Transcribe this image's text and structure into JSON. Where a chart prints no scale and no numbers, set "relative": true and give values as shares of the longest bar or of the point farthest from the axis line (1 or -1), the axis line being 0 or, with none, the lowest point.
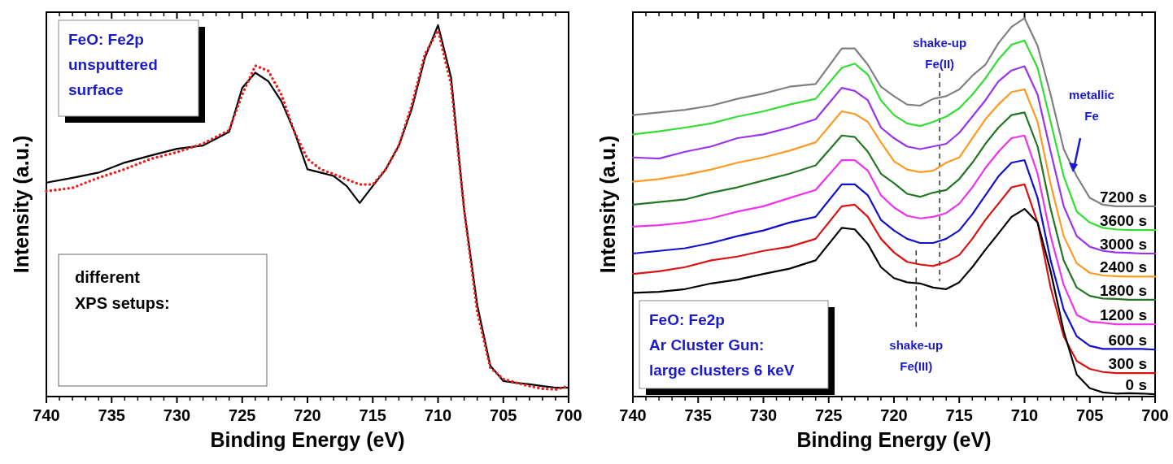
{
  "chart_data": [
    {
      "type": "line",
      "xlabel": "Binding Energy (eV)",
      "ylabel": "Intensity (a.u.)",
      "xlim": [
        740,
        700
      ],
      "xticks": [
        740,
        735,
        730,
        725,
        720,
        715,
        710,
        705,
        700
      ],
      "relative": true,
      "marker": "none",
      "annotations": [
        "FeO: Fe2p\nunsputtered\nsurface",
        "different\nXPS setups:"
      ],
      "x": [
        740,
        738,
        736,
        734,
        732,
        730,
        728,
        726,
        725,
        724,
        723,
        722,
        721,
        720,
        719,
        718,
        717,
        716,
        715,
        714,
        713,
        712,
        711,
        710,
        709,
        708,
        707,
        706,
        705,
        704,
        703,
        702,
        701,
        700
      ],
      "series": [
        {
          "color": "#000000",
          "line_style": "solid",
          "values": [
            0.576,
            0.589,
            0.603,
            0.63,
            0.649,
            0.667,
            0.676,
            0.713,
            0.831,
            0.872,
            0.849,
            0.795,
            0.713,
            0.612,
            0.603,
            0.594,
            0.567,
            0.521,
            0.567,
            0.612,
            0.676,
            0.776,
            0.913,
            1.0,
            0.859,
            0.503,
            0.247,
            0.083,
            0.042,
            0.037,
            0.033,
            0.028,
            0.024,
            0.024
          ]
        },
        {
          "color": "#e8201e",
          "line_style": "dotted",
          "values": [
            0.553,
            0.562,
            0.589,
            0.612,
            0.64,
            0.658,
            0.681,
            0.717,
            0.813,
            0.891,
            0.877,
            0.813,
            0.713,
            0.64,
            0.612,
            0.599,
            0.585,
            0.571,
            0.571,
            0.612,
            0.676,
            0.786,
            0.922,
            0.986,
            0.84,
            0.503,
            0.229,
            0.078,
            0.047,
            0.037,
            0.028,
            0.021,
            0.019,
            0.028
          ]
        }
      ]
    },
    {
      "type": "line",
      "xlabel": "Binding Energy (eV)",
      "ylabel": "Intensity (a.u.)",
      "xlim": [
        740,
        700
      ],
      "xticks": [
        740,
        735,
        730,
        725,
        720,
        715,
        710,
        705,
        700
      ],
      "relative": true,
      "marker": "none",
      "annotations": [
        "FeO: Fe2p\nAr Cluster Gun:\nlarge clusters 6 keV",
        "metallic\nFe"
      ],
      "ref_lines": [
        {
          "axis": "x",
          "value": 716.5,
          "label": "shake-up\nFe(II)",
          "color": "#333333",
          "line_style": "dashed"
        },
        {
          "axis": "x",
          "value": 718.3,
          "label": "shake-up\nFe(III)",
          "color": "#333333",
          "line_style": "dashed"
        }
      ],
      "x": [
        740,
        738,
        736,
        734,
        732,
        730,
        728,
        726,
        724,
        723,
        722,
        721,
        720,
        719,
        718,
        717,
        716,
        715,
        714,
        713,
        712,
        711,
        710,
        709,
        708,
        707,
        706,
        705,
        704,
        703,
        702,
        701,
        700
      ],
      "series": [
        {
          "name": "7200 s",
          "color": "#808080",
          "values": [
            0.744,
            0.751,
            0.758,
            0.769,
            0.787,
            0.801,
            0.819,
            0.826,
            0.92,
            0.92,
            0.877,
            0.819,
            0.794,
            0.772,
            0.769,
            0.787,
            0.794,
            0.812,
            0.848,
            0.877,
            0.934,
            0.977,
            1.0,
            0.927,
            0.798,
            0.654,
            0.582,
            0.525,
            0.507,
            0.503,
            0.503,
            0.503,
            0.503
          ]
        },
        {
          "name": "3600 s",
          "color": "#33dd33",
          "values": [
            0.693,
            0.701,
            0.711,
            0.722,
            0.74,
            0.754,
            0.772,
            0.787,
            0.869,
            0.88,
            0.851,
            0.783,
            0.744,
            0.722,
            0.715,
            0.726,
            0.74,
            0.762,
            0.798,
            0.841,
            0.891,
            0.93,
            0.941,
            0.869,
            0.726,
            0.582,
            0.489,
            0.46,
            0.446,
            0.442,
            0.44,
            0.44,
            0.44
          ]
        },
        {
          "name": "3000 s",
          "color": "#9933ee",
          "values": [
            0.632,
            0.629,
            0.647,
            0.661,
            0.683,
            0.693,
            0.711,
            0.733,
            0.816,
            0.808,
            0.783,
            0.711,
            0.683,
            0.661,
            0.654,
            0.661,
            0.668,
            0.697,
            0.74,
            0.783,
            0.833,
            0.862,
            0.873,
            0.798,
            0.647,
            0.503,
            0.424,
            0.396,
            0.385,
            0.381,
            0.38,
            0.378,
            0.378
          ]
        },
        {
          "name": "2400 s",
          "color": "#ff9922",
          "values": [
            0.568,
            0.575,
            0.586,
            0.6,
            0.618,
            0.632,
            0.65,
            0.672,
            0.754,
            0.747,
            0.726,
            0.672,
            0.622,
            0.6,
            0.593,
            0.597,
            0.618,
            0.632,
            0.683,
            0.733,
            0.772,
            0.805,
            0.812,
            0.726,
            0.561,
            0.424,
            0.352,
            0.327,
            0.32,
            0.318,
            0.317,
            0.317,
            0.317
          ]
        },
        {
          "name": "1800 s",
          "color": "#227722",
          "values": [
            0.507,
            0.514,
            0.521,
            0.539,
            0.553,
            0.571,
            0.589,
            0.611,
            0.69,
            0.686,
            0.647,
            0.589,
            0.564,
            0.536,
            0.528,
            0.539,
            0.546,
            0.575,
            0.618,
            0.668,
            0.711,
            0.744,
            0.751,
            0.661,
            0.496,
            0.36,
            0.288,
            0.266,
            0.259,
            0.258,
            0.256,
            0.256,
            0.256
          ]
        },
        {
          "name": "1200 s",
          "color": "#ee33ee",
          "values": [
            0.449,
            0.453,
            0.46,
            0.471,
            0.489,
            0.503,
            0.525,
            0.546,
            0.625,
            0.625,
            0.597,
            0.532,
            0.5,
            0.478,
            0.471,
            0.475,
            0.485,
            0.51,
            0.553,
            0.604,
            0.647,
            0.683,
            0.69,
            0.589,
            0.424,
            0.295,
            0.216,
            0.198,
            0.195,
            0.191,
            0.191,
            0.191,
            0.191
          ]
        },
        {
          "name": "600 s",
          "color": "#1111cc",
          "values": [
            0.378,
            0.385,
            0.392,
            0.406,
            0.424,
            0.439,
            0.46,
            0.475,
            0.561,
            0.561,
            0.532,
            0.467,
            0.439,
            0.417,
            0.406,
            0.406,
            0.417,
            0.439,
            0.482,
            0.532,
            0.582,
            0.618,
            0.625,
            0.525,
            0.36,
            0.23,
            0.159,
            0.134,
            0.126,
            0.126,
            0.126,
            0.126,
            0.124
          ]
        },
        {
          "name": "300 s",
          "color": "#dd1111",
          "values": [
            0.324,
            0.331,
            0.342,
            0.36,
            0.37,
            0.385,
            0.396,
            0.417,
            0.503,
            0.507,
            0.475,
            0.417,
            0.381,
            0.356,
            0.349,
            0.345,
            0.356,
            0.374,
            0.417,
            0.467,
            0.51,
            0.553,
            0.561,
            0.46,
            0.288,
            0.159,
            0.094,
            0.073,
            0.065,
            0.062,
            0.062,
            0.062,
            0.062
          ]
        },
        {
          "name": "0 s",
          "color": "#000000",
          "values": [
            0.274,
            0.277,
            0.284,
            0.299,
            0.309,
            0.324,
            0.338,
            0.36,
            0.446,
            0.442,
            0.403,
            0.342,
            0.313,
            0.302,
            0.299,
            0.288,
            0.284,
            0.302,
            0.342,
            0.388,
            0.431,
            0.475,
            0.496,
            0.46,
            0.331,
            0.173,
            0.058,
            0.022,
            0.011,
            0.008,
            0.009,
            0.008,
            0.006
          ]
        }
      ]
    }
  ]
}
